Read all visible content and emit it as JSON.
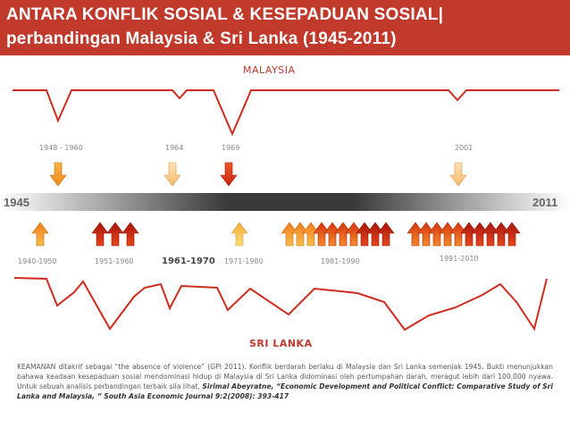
{
  "title": {
    "line1": "ANTARA KONFLIK SOSIAL & KESEPADUAN SOSIAL|",
    "line2": "perbandingan Malaysia &  Sri  Lanka (1945-2011)"
  },
  "malaysia": {
    "label": "MALAYSIA",
    "periods": [
      {
        "label": "1948 - 1960"
      },
      {
        "label": "1964"
      },
      {
        "label": "1969"
      },
      {
        "label": "2001"
      }
    ]
  },
  "timeline": {
    "start": "1945",
    "end": "2011"
  },
  "srilanka": {
    "label": "SRI LANKA",
    "periods": [
      {
        "label": "1940-1950",
        "arrows": 1
      },
      {
        "label": "1951-1960",
        "arrows": 3
      },
      {
        "label": "1961-1970",
        "arrows": 0
      },
      {
        "label": "1971-1980",
        "arrows": 1
      },
      {
        "label": "1981-1990",
        "arrows": 10
      },
      {
        "label": "1991-2010",
        "arrows": 10
      }
    ]
  },
  "footer": {
    "text": "KEAMANAN ditakrif sebagai “the absence of violence” (GPI 2011). Konflik berdarah berlaku di Malaysia dan Sri Lanka semenjak 1945. Bukti menunjukkan bahawa keadaan kesepaduan sosial mendominasi hidup di Malaysia di Sri Lanka didominasi oleh pertumpahan darah, meragut lebih dari 100,000 nyawa. Untuk sebuah analisis perbandingan terbaik sila lihat, ",
    "citation": "Sirimal Abeyratne, “Economic Development and Political Conflict: Comparative Study of Sri Lanka and Malaysia, “ South Asia Economic Journal  9:2(2008): 393-417"
  },
  "colors": {
    "accent": "#c0392b",
    "arrow_light": "#f9c784",
    "arrow_orange": "#f39c12",
    "arrow_red": "#d32f0f"
  }
}
